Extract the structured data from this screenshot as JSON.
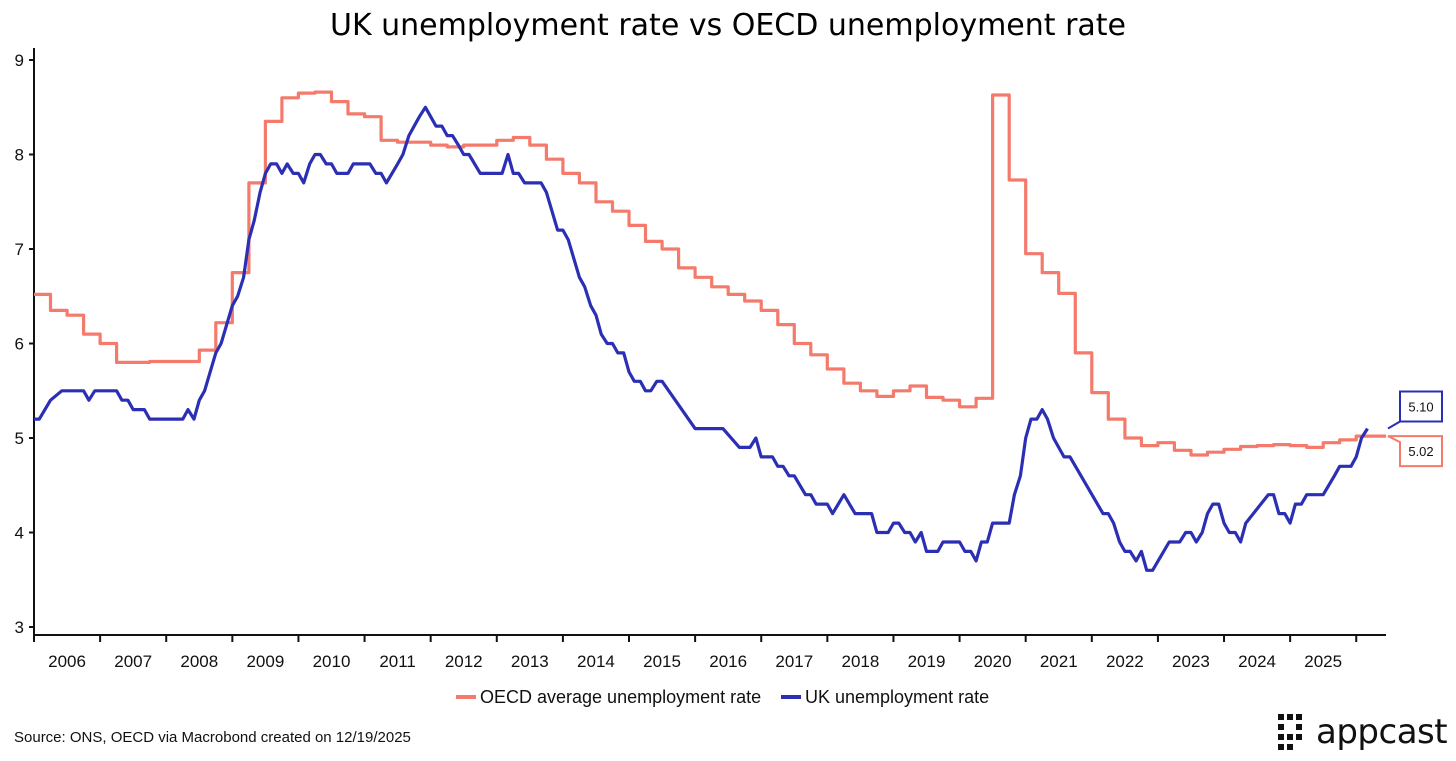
{
  "title": "UK unemployment rate vs OECD unemployment rate",
  "source": "Source: ONS, OECD via Macrobond created on 12/19/2025",
  "logo": {
    "text": "appcast"
  },
  "legend": [
    {
      "label": "OECD average unemployment rate",
      "color": "#f47a6c"
    },
    {
      "label": "UK unemployment rate",
      "color": "#2b2fb3"
    }
  ],
  "callouts": {
    "uk": "5.10",
    "oecd": "5.02"
  },
  "chart_data": {
    "type": "line",
    "title": "UK unemployment rate vs OECD unemployment rate",
    "xlabel": "",
    "ylabel": "",
    "xlim": [
      2005.5,
      2025.95
    ],
    "ylim": [
      3,
      9
    ],
    "yticks": [
      3,
      4,
      5,
      6,
      7,
      8,
      9
    ],
    "x_tick_labels": [
      "2006",
      "2007",
      "2008",
      "2009",
      "2010",
      "2011",
      "2012",
      "2013",
      "2014",
      "2015",
      "2016",
      "2017",
      "2018",
      "2019",
      "2020",
      "2021",
      "2022",
      "2023",
      "2024",
      "2025"
    ],
    "grid": false,
    "legend_position": "bottom",
    "series": [
      {
        "name": "OECD average unemployment rate",
        "color": "#f47a6c",
        "step": true,
        "points": [
          [
            2005.5,
            6.52
          ],
          [
            2005.75,
            6.35
          ],
          [
            2006.0,
            6.3
          ],
          [
            2006.25,
            6.1
          ],
          [
            2006.5,
            6.0
          ],
          [
            2006.75,
            5.8
          ],
          [
            2007.0,
            5.8
          ],
          [
            2007.25,
            5.81
          ],
          [
            2007.5,
            5.81
          ],
          [
            2007.75,
            5.81
          ],
          [
            2008.0,
            5.93
          ],
          [
            2008.25,
            6.22
          ],
          [
            2008.5,
            6.75
          ],
          [
            2008.75,
            7.7
          ],
          [
            2009.0,
            8.35
          ],
          [
            2009.25,
            8.6
          ],
          [
            2009.5,
            8.65
          ],
          [
            2009.75,
            8.66
          ],
          [
            2010.0,
            8.56
          ],
          [
            2010.25,
            8.43
          ],
          [
            2010.5,
            8.4
          ],
          [
            2010.75,
            8.15
          ],
          [
            2011.0,
            8.13
          ],
          [
            2011.25,
            8.13
          ],
          [
            2011.5,
            8.1
          ],
          [
            2011.75,
            8.08
          ],
          [
            2012.0,
            8.1
          ],
          [
            2012.25,
            8.1
          ],
          [
            2012.5,
            8.15
          ],
          [
            2012.75,
            8.18
          ],
          [
            2013.0,
            8.1
          ],
          [
            2013.25,
            7.95
          ],
          [
            2013.5,
            7.8
          ],
          [
            2013.75,
            7.7
          ],
          [
            2014.0,
            7.5
          ],
          [
            2014.25,
            7.4
          ],
          [
            2014.5,
            7.25
          ],
          [
            2014.75,
            7.08
          ],
          [
            2015.0,
            7.0
          ],
          [
            2015.25,
            6.8
          ],
          [
            2015.5,
            6.7
          ],
          [
            2015.75,
            6.6
          ],
          [
            2016.0,
            6.52
          ],
          [
            2016.25,
            6.45
          ],
          [
            2016.5,
            6.35
          ],
          [
            2016.75,
            6.2
          ],
          [
            2017.0,
            6.0
          ],
          [
            2017.25,
            5.88
          ],
          [
            2017.5,
            5.73
          ],
          [
            2017.75,
            5.58
          ],
          [
            2018.0,
            5.5
          ],
          [
            2018.25,
            5.44
          ],
          [
            2018.5,
            5.5
          ],
          [
            2018.75,
            5.55
          ],
          [
            2019.0,
            5.43
          ],
          [
            2019.25,
            5.4
          ],
          [
            2019.5,
            5.33
          ],
          [
            2019.75,
            5.42
          ],
          [
            2020.0,
            8.63
          ],
          [
            2020.25,
            7.73
          ],
          [
            2020.5,
            6.95
          ],
          [
            2020.75,
            6.75
          ],
          [
            2021.0,
            6.53
          ],
          [
            2021.25,
            5.9
          ],
          [
            2021.5,
            5.48
          ],
          [
            2021.75,
            5.2
          ],
          [
            2022.0,
            5.0
          ],
          [
            2022.25,
            4.92
          ],
          [
            2022.5,
            4.95
          ],
          [
            2022.75,
            4.87
          ],
          [
            2023.0,
            4.82
          ],
          [
            2023.25,
            4.85
          ],
          [
            2023.5,
            4.88
          ],
          [
            2023.75,
            4.91
          ],
          [
            2024.0,
            4.92
          ],
          [
            2024.25,
            4.93
          ],
          [
            2024.5,
            4.92
          ],
          [
            2024.75,
            4.9
          ],
          [
            2025.0,
            4.95
          ],
          [
            2025.25,
            4.98
          ],
          [
            2025.5,
            5.02
          ],
          [
            2025.75,
            5.02
          ]
        ]
      },
      {
        "name": "UK unemployment rate",
        "color": "#2b2fb3",
        "step": false,
        "points": [
          [
            2005.5,
            5.2
          ],
          [
            2005.58,
            5.2
          ],
          [
            2005.75,
            5.4
          ],
          [
            2005.92,
            5.5
          ],
          [
            2006.08,
            5.5
          ],
          [
            2006.25,
            5.5
          ],
          [
            2006.33,
            5.4
          ],
          [
            2006.42,
            5.5
          ],
          [
            2006.58,
            5.5
          ],
          [
            2006.75,
            5.5
          ],
          [
            2006.83,
            5.4
          ],
          [
            2006.92,
            5.4
          ],
          [
            2007.0,
            5.3
          ],
          [
            2007.17,
            5.3
          ],
          [
            2007.25,
            5.2
          ],
          [
            2007.5,
            5.2
          ],
          [
            2007.75,
            5.2
          ],
          [
            2007.83,
            5.3
          ],
          [
            2007.92,
            5.2
          ],
          [
            2008.0,
            5.4
          ],
          [
            2008.08,
            5.5
          ],
          [
            2008.25,
            5.9
          ],
          [
            2008.33,
            6.0
          ],
          [
            2008.5,
            6.4
          ],
          [
            2008.58,
            6.5
          ],
          [
            2008.67,
            6.7
          ],
          [
            2008.75,
            7.1
          ],
          [
            2008.83,
            7.3
          ],
          [
            2008.92,
            7.6
          ],
          [
            2009.0,
            7.8
          ],
          [
            2009.08,
            7.9
          ],
          [
            2009.17,
            7.9
          ],
          [
            2009.25,
            7.8
          ],
          [
            2009.33,
            7.9
          ],
          [
            2009.42,
            7.8
          ],
          [
            2009.5,
            7.8
          ],
          [
            2009.58,
            7.7
          ],
          [
            2009.67,
            7.9
          ],
          [
            2009.75,
            8.0
          ],
          [
            2009.83,
            8.0
          ],
          [
            2009.92,
            7.9
          ],
          [
            2010.0,
            7.9
          ],
          [
            2010.08,
            7.8
          ],
          [
            2010.25,
            7.8
          ],
          [
            2010.33,
            7.9
          ],
          [
            2010.58,
            7.9
          ],
          [
            2010.67,
            7.8
          ],
          [
            2010.75,
            7.8
          ],
          [
            2010.83,
            7.7
          ],
          [
            2011.0,
            7.9
          ],
          [
            2011.08,
            8.0
          ],
          [
            2011.17,
            8.2
          ],
          [
            2011.33,
            8.4
          ],
          [
            2011.42,
            8.5
          ],
          [
            2011.5,
            8.4
          ],
          [
            2011.58,
            8.3
          ],
          [
            2011.67,
            8.3
          ],
          [
            2011.75,
            8.2
          ],
          [
            2011.83,
            8.2
          ],
          [
            2011.92,
            8.1
          ],
          [
            2012.0,
            8.0
          ],
          [
            2012.08,
            8.0
          ],
          [
            2012.25,
            7.8
          ],
          [
            2012.58,
            7.8
          ],
          [
            2012.67,
            8.0
          ],
          [
            2012.75,
            7.8
          ],
          [
            2012.83,
            7.8
          ],
          [
            2012.92,
            7.7
          ],
          [
            2013.17,
            7.7
          ],
          [
            2013.25,
            7.6
          ],
          [
            2013.42,
            7.2
          ],
          [
            2013.5,
            7.2
          ],
          [
            2013.58,
            7.1
          ],
          [
            2013.75,
            6.7
          ],
          [
            2013.83,
            6.6
          ],
          [
            2013.92,
            6.4
          ],
          [
            2014.0,
            6.3
          ],
          [
            2014.08,
            6.1
          ],
          [
            2014.17,
            6.0
          ],
          [
            2014.25,
            6.0
          ],
          [
            2014.33,
            5.9
          ],
          [
            2014.42,
            5.9
          ],
          [
            2014.5,
            5.7
          ],
          [
            2014.58,
            5.6
          ],
          [
            2014.67,
            5.6
          ],
          [
            2014.75,
            5.5
          ],
          [
            2014.83,
            5.5
          ],
          [
            2014.92,
            5.6
          ],
          [
            2015.0,
            5.6
          ],
          [
            2015.5,
            5.1
          ],
          [
            2015.92,
            5.1
          ],
          [
            2016.17,
            4.9
          ],
          [
            2016.33,
            4.9
          ],
          [
            2016.42,
            5.0
          ],
          [
            2016.5,
            4.8
          ],
          [
            2016.67,
            4.8
          ],
          [
            2016.75,
            4.7
          ],
          [
            2016.83,
            4.7
          ],
          [
            2016.92,
            4.6
          ],
          [
            2017.0,
            4.6
          ],
          [
            2017.17,
            4.4
          ],
          [
            2017.25,
            4.4
          ],
          [
            2017.33,
            4.3
          ],
          [
            2017.5,
            4.3
          ],
          [
            2017.58,
            4.2
          ],
          [
            2017.75,
            4.4
          ],
          [
            2017.92,
            4.2
          ],
          [
            2018.17,
            4.2
          ],
          [
            2018.25,
            4.0
          ],
          [
            2018.42,
            4.0
          ],
          [
            2018.5,
            4.1
          ],
          [
            2018.58,
            4.1
          ],
          [
            2018.67,
            4.0
          ],
          [
            2018.75,
            4.0
          ],
          [
            2018.83,
            3.9
          ],
          [
            2018.92,
            4.0
          ],
          [
            2019.0,
            3.8
          ],
          [
            2019.17,
            3.8
          ],
          [
            2019.25,
            3.9
          ],
          [
            2019.5,
            3.9
          ],
          [
            2019.58,
            3.8
          ],
          [
            2019.67,
            3.8
          ],
          [
            2019.75,
            3.7
          ],
          [
            2019.83,
            3.9
          ],
          [
            2019.92,
            3.9
          ],
          [
            2020.0,
            4.1
          ],
          [
            2020.25,
            4.1
          ],
          [
            2020.33,
            4.4
          ],
          [
            2020.42,
            4.6
          ],
          [
            2020.5,
            5.0
          ],
          [
            2020.58,
            5.2
          ],
          [
            2020.67,
            5.2
          ],
          [
            2020.75,
            5.3
          ],
          [
            2020.83,
            5.2
          ],
          [
            2020.92,
            5.0
          ],
          [
            2021.08,
            4.8
          ],
          [
            2021.17,
            4.8
          ],
          [
            2021.67,
            4.2
          ],
          [
            2021.75,
            4.2
          ],
          [
            2021.83,
            4.1
          ],
          [
            2021.92,
            3.9
          ],
          [
            2022.0,
            3.8
          ],
          [
            2022.08,
            3.8
          ],
          [
            2022.17,
            3.7
          ],
          [
            2022.25,
            3.8
          ],
          [
            2022.33,
            3.6
          ],
          [
            2022.42,
            3.6
          ],
          [
            2022.67,
            3.9
          ],
          [
            2022.83,
            3.9
          ],
          [
            2022.92,
            4.0
          ],
          [
            2023.0,
            4.0
          ],
          [
            2023.08,
            3.9
          ],
          [
            2023.17,
            4.0
          ],
          [
            2023.25,
            4.2
          ],
          [
            2023.33,
            4.3
          ],
          [
            2023.42,
            4.3
          ],
          [
            2023.5,
            4.1
          ],
          [
            2023.58,
            4.0
          ],
          [
            2023.67,
            4.0
          ],
          [
            2023.75,
            3.9
          ],
          [
            2023.83,
            4.1
          ],
          [
            2024.17,
            4.4
          ],
          [
            2024.25,
            4.4
          ],
          [
            2024.33,
            4.2
          ],
          [
            2024.42,
            4.2
          ],
          [
            2024.5,
            4.1
          ],
          [
            2024.58,
            4.3
          ],
          [
            2024.67,
            4.3
          ],
          [
            2024.75,
            4.4
          ],
          [
            2025.0,
            4.4
          ],
          [
            2025.17,
            4.6
          ],
          [
            2025.25,
            4.7
          ],
          [
            2025.42,
            4.7
          ],
          [
            2025.5,
            4.8
          ],
          [
            2025.58,
            5.0
          ],
          [
            2025.67,
            5.1
          ]
        ]
      }
    ]
  }
}
